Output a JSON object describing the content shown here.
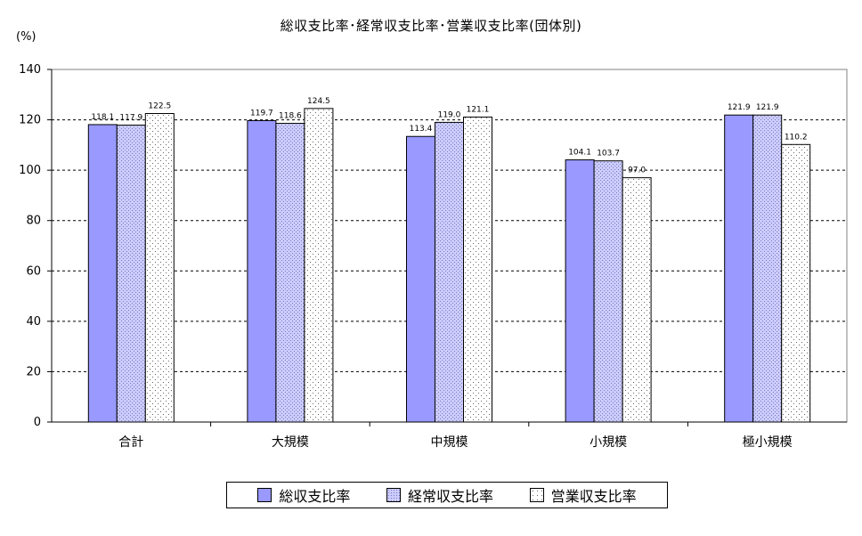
{
  "chart_data": {
    "type": "bar",
    "title": "総収支比率･経常収支比率･営業収支比率(団体別)",
    "y_unit": "(%)",
    "categories": [
      "合計",
      "大規模",
      "中規模",
      "小規模",
      "極小規模"
    ],
    "series": [
      {
        "name": "総収支比率",
        "values": [
          118.1,
          119.7,
          113.4,
          104.1,
          121.9
        ],
        "labels": [
          "118.1",
          "119.7",
          "113.4",
          "104.1",
          "121.9"
        ],
        "color": "#9999ff",
        "pattern": "solid"
      },
      {
        "name": "経常収支比率",
        "values": [
          117.9,
          118.6,
          119.0,
          103.7,
          121.9
        ],
        "labels": [
          "117.9",
          "118.6",
          "119.0",
          "103.7",
          "121.9"
        ],
        "color": "#ccccff",
        "pattern": "dense-dots"
      },
      {
        "name": "営業収支比率",
        "values": [
          122.5,
          124.5,
          121.1,
          97.0,
          110.2
        ],
        "labels": [
          "122.5",
          "124.5",
          "121.1",
          "97.0",
          "110.2"
        ],
        "color": "#ffffff",
        "pattern": "sparse-dots"
      }
    ],
    "ylim": [
      0,
      140
    ],
    "yticks": [
      "0",
      "20",
      "40",
      "60",
      "80",
      "100",
      "120",
      "140"
    ],
    "ytick_values": [
      0,
      20,
      40,
      60,
      80,
      100,
      120,
      140
    ],
    "grid": "horizontal-dashed",
    "legend_position": "bottom"
  }
}
